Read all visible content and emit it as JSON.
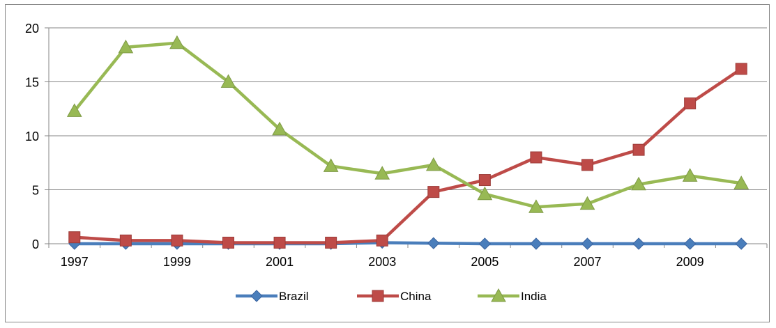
{
  "chart_data": {
    "type": "line",
    "title": "",
    "xlabel": "",
    "ylabel": "",
    "x": [
      1997,
      1998,
      1999,
      2000,
      2001,
      2002,
      2003,
      2004,
      2005,
      2006,
      2007,
      2008,
      2009,
      2010
    ],
    "x_tick_labels": [
      "1997",
      "1999",
      "2001",
      "2003",
      "2005",
      "2007",
      "2009"
    ],
    "y_ticks": [
      "0",
      "5",
      "10",
      "15",
      "20"
    ],
    "ylim": [
      0,
      20
    ],
    "grid": true,
    "legend_position": "bottom",
    "series": [
      {
        "name": "Brazil",
        "color": "#4a7ebb",
        "marker": "diamond",
        "values": [
          0.0,
          0.0,
          0.0,
          0.0,
          0.0,
          0.0,
          0.1,
          0.05,
          0.0,
          0.0,
          0.0,
          0.0,
          0.0,
          0.0
        ]
      },
      {
        "name": "China",
        "color": "#be4b48",
        "marker": "square",
        "values": [
          0.6,
          0.3,
          0.3,
          0.1,
          0.1,
          0.1,
          0.3,
          4.8,
          5.9,
          8.0,
          7.3,
          8.7,
          13.0,
          16.2
        ]
      },
      {
        "name": "India",
        "color": "#98b954",
        "marker": "triangle",
        "values": [
          12.3,
          18.2,
          18.6,
          15.0,
          10.6,
          7.2,
          6.5,
          7.3,
          4.6,
          3.4,
          3.7,
          5.5,
          6.3,
          5.6
        ]
      }
    ]
  }
}
